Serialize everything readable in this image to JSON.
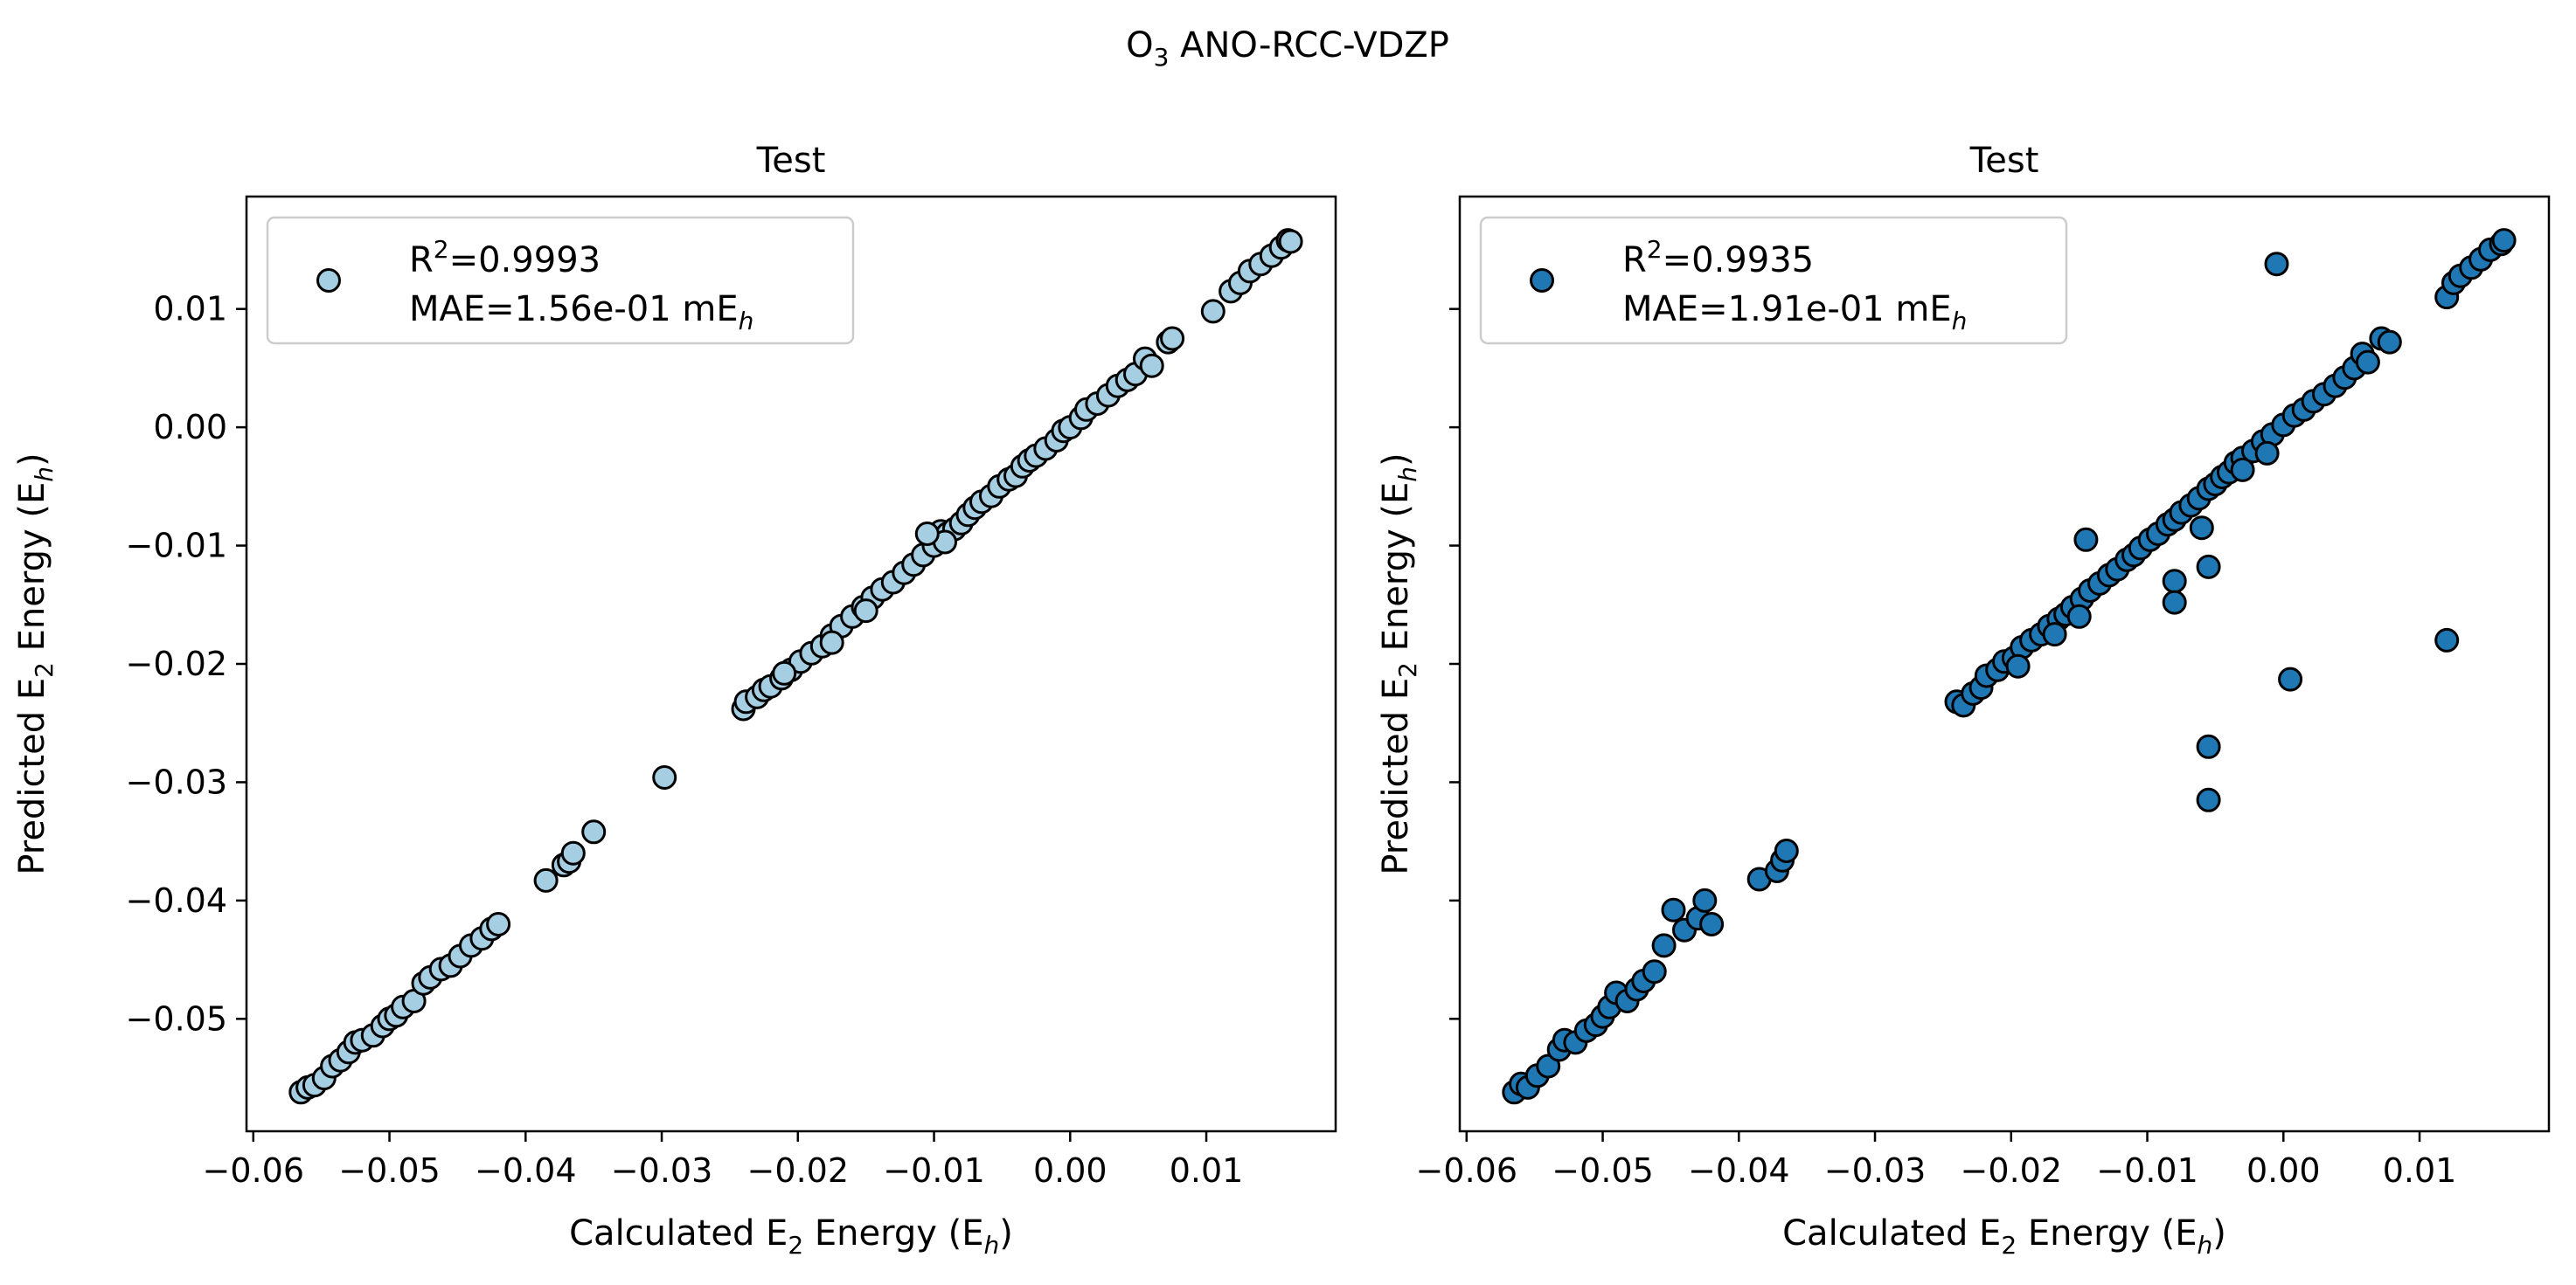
{
  "figure": {
    "suptitle": {
      "main": "O",
      "sub": "3",
      "rest": " ANO-RCC-VDZP"
    }
  },
  "colors": {
    "left_marker": "#a6cee3",
    "right_marker": "#1f78b4",
    "marker_edge": "#000000"
  },
  "chart_data": [
    {
      "type": "scatter",
      "title": "Test",
      "xlabel": {
        "pre": "Calculated E",
        "sub": "2",
        "mid": " Energy (E",
        "italic": "h",
        "post": ")"
      },
      "ylabel": {
        "pre": "Predicted E",
        "sub": "2",
        "mid": " Energy (E",
        "italic": "h",
        "post": ")"
      },
      "xlim": [
        -0.0605,
        0.0195
      ],
      "ylim": [
        -0.0595,
        0.0195
      ],
      "xticks": [
        -0.06,
        -0.05,
        -0.04,
        -0.03,
        -0.02,
        -0.01,
        0.0,
        0.01
      ],
      "xtick_labels": [
        "−0.06",
        "−0.05",
        "−0.04",
        "−0.03",
        "−0.02",
        "−0.01",
        "0.00",
        "0.01"
      ],
      "yticks": [
        -0.05,
        -0.04,
        -0.03,
        -0.02,
        -0.01,
        0.0,
        0.01
      ],
      "ytick_labels": [
        "−0.05",
        "−0.04",
        "−0.03",
        "−0.02",
        "−0.01",
        "0.00",
        "0.01"
      ],
      "show_ytick_labels": true,
      "grid": false,
      "legend": {
        "placement": "upper-left",
        "r2_label": "R",
        "r2_sup": "2",
        "r2_value": "=0.9993",
        "mae_label": "MAE=1.56e-01 mE",
        "mae_sub": "h"
      },
      "series": [
        {
          "color_key": "left_marker",
          "points": [
            [
              -0.0565,
              -0.0562
            ],
            [
              -0.056,
              -0.0558
            ],
            [
              -0.0555,
              -0.0556
            ],
            [
              -0.0548,
              -0.055
            ],
            [
              -0.0542,
              -0.054
            ],
            [
              -0.0536,
              -0.0535
            ],
            [
              -0.053,
              -0.0528
            ],
            [
              -0.0525,
              -0.052
            ],
            [
              -0.052,
              -0.0518
            ],
            [
              -0.0512,
              -0.0514
            ],
            [
              -0.0505,
              -0.0506
            ],
            [
              -0.05,
              -0.05
            ],
            [
              -0.0495,
              -0.0497
            ],
            [
              -0.049,
              -0.049
            ],
            [
              -0.0482,
              -0.0485
            ],
            [
              -0.0475,
              -0.047
            ],
            [
              -0.047,
              -0.0465
            ],
            [
              -0.0462,
              -0.0458
            ],
            [
              -0.0455,
              -0.0455
            ],
            [
              -0.0448,
              -0.0447
            ],
            [
              -0.044,
              -0.0438
            ],
            [
              -0.0432,
              -0.0432
            ],
            [
              -0.0425,
              -0.0424
            ],
            [
              -0.042,
              -0.042
            ],
            [
              -0.0385,
              -0.0383
            ],
            [
              -0.0372,
              -0.037
            ],
            [
              -0.0368,
              -0.0367
            ],
            [
              -0.0365,
              -0.036
            ],
            [
              -0.035,
              -0.0342
            ],
            [
              -0.0298,
              -0.0296
            ],
            [
              -0.024,
              -0.0238
            ],
            [
              -0.0238,
              -0.0232
            ],
            [
              -0.023,
              -0.0228
            ],
            [
              -0.0225,
              -0.0222
            ],
            [
              -0.022,
              -0.0219
            ],
            [
              -0.0212,
              -0.0212
            ],
            [
              -0.0205,
              -0.0205
            ],
            [
              -0.0198,
              -0.0198
            ],
            [
              -0.019,
              -0.0191
            ],
            [
              -0.0182,
              -0.0185
            ],
            [
              -0.0175,
              -0.0176
            ],
            [
              -0.0168,
              -0.0168
            ],
            [
              -0.016,
              -0.016
            ],
            [
              -0.0152,
              -0.0152
            ],
            [
              -0.0145,
              -0.0144
            ],
            [
              -0.0138,
              -0.0137
            ],
            [
              -0.013,
              -0.0131
            ],
            [
              -0.0122,
              -0.0123
            ],
            [
              -0.0115,
              -0.0116
            ],
            [
              -0.0108,
              -0.0108
            ],
            [
              -0.01,
              -0.01
            ],
            [
              -0.0095,
              -0.0088
            ],
            [
              -0.009,
              -0.009
            ],
            [
              -0.0085,
              -0.0086
            ],
            [
              -0.008,
              -0.0081
            ],
            [
              -0.0075,
              -0.0074
            ],
            [
              -0.007,
              -0.0068
            ],
            [
              -0.0065,
              -0.0063
            ],
            [
              -0.0058,
              -0.0058
            ],
            [
              -0.0052,
              -0.005
            ],
            [
              -0.0045,
              -0.0044
            ],
            [
              -0.004,
              -0.0041
            ],
            [
              -0.0035,
              -0.0033
            ],
            [
              -0.003,
              -0.0028
            ],
            [
              -0.0025,
              -0.0024
            ],
            [
              -0.0018,
              -0.0018
            ],
            [
              -0.001,
              -0.0011
            ],
            [
              -0.0005,
              -0.0003
            ],
            [
              0.0,
              0.0
            ],
            [
              0.0008,
              0.0008
            ],
            [
              0.0012,
              0.0015
            ],
            [
              0.002,
              0.002
            ],
            [
              0.0028,
              0.0027
            ],
            [
              0.0035,
              0.0035
            ],
            [
              0.0042,
              0.004
            ],
            [
              0.0048,
              0.0045
            ],
            [
              0.0055,
              0.0058
            ],
            [
              0.006,
              0.0052
            ],
            [
              0.0072,
              0.0072
            ],
            [
              0.0075,
              0.0075
            ],
            [
              0.0105,
              0.0098
            ],
            [
              0.0118,
              0.0115
            ],
            [
              0.0125,
              0.0122
            ],
            [
              0.0132,
              0.0132
            ],
            [
              0.014,
              0.0138
            ],
            [
              0.0148,
              0.0145
            ],
            [
              0.0155,
              0.0152
            ],
            [
              0.016,
              0.0158
            ],
            [
              0.0162,
              0.0157
            ],
            [
              -0.0092,
              -0.0097
            ],
            [
              -0.0105,
              -0.009
            ],
            [
              -0.0175,
              -0.0182
            ],
            [
              -0.015,
              -0.0155
            ],
            [
              -0.021,
              -0.0208
            ]
          ]
        }
      ]
    },
    {
      "type": "scatter",
      "title": "Test",
      "xlabel": {
        "pre": "Calculated E",
        "sub": "2",
        "mid": " Energy (E",
        "italic": "h",
        "post": ")"
      },
      "ylabel": {
        "pre": "Predicted E",
        "sub": "2",
        "mid": " Energy (E",
        "italic": "h",
        "post": ")"
      },
      "xlim": [
        -0.0605,
        0.0195
      ],
      "ylim": [
        -0.0595,
        0.0195
      ],
      "xticks": [
        -0.06,
        -0.05,
        -0.04,
        -0.03,
        -0.02,
        -0.01,
        0.0,
        0.01
      ],
      "xtick_labels": [
        "−0.06",
        "−0.05",
        "−0.04",
        "−0.03",
        "−0.02",
        "−0.01",
        "0.00",
        "0.01"
      ],
      "yticks": [
        -0.05,
        -0.04,
        -0.03,
        -0.02,
        -0.01,
        0.0,
        0.01
      ],
      "ytick_labels": [],
      "show_ytick_labels": false,
      "grid": false,
      "legend": {
        "placement": "upper-left",
        "r2_label": "R",
        "r2_sup": "2",
        "r2_value": "=0.9935",
        "mae_label": "MAE=1.91e-01 mE",
        "mae_sub": "h"
      },
      "series": [
        {
          "color_key": "right_marker",
          "points": [
            [
              -0.0565,
              -0.0562
            ],
            [
              -0.056,
              -0.0555
            ],
            [
              -0.0555,
              -0.0558
            ],
            [
              -0.0548,
              -0.0548
            ],
            [
              -0.054,
              -0.054
            ],
            [
              -0.0532,
              -0.0526
            ],
            [
              -0.0528,
              -0.0518
            ],
            [
              -0.052,
              -0.052
            ],
            [
              -0.0512,
              -0.051
            ],
            [
              -0.0505,
              -0.0505
            ],
            [
              -0.05,
              -0.0498
            ],
            [
              -0.0495,
              -0.049
            ],
            [
              -0.049,
              -0.0478
            ],
            [
              -0.0482,
              -0.0485
            ],
            [
              -0.0475,
              -0.0475
            ],
            [
              -0.047,
              -0.0468
            ],
            [
              -0.0462,
              -0.046
            ],
            [
              -0.0455,
              -0.0438
            ],
            [
              -0.0448,
              -0.0408
            ],
            [
              -0.044,
              -0.0425
            ],
            [
              -0.043,
              -0.0415
            ],
            [
              -0.0425,
              -0.04
            ],
            [
              -0.042,
              -0.042
            ],
            [
              -0.0385,
              -0.0382
            ],
            [
              -0.0372,
              -0.0375
            ],
            [
              -0.0368,
              -0.0366
            ],
            [
              -0.0365,
              -0.0358
            ],
            [
              -0.024,
              -0.0232
            ],
            [
              -0.0235,
              -0.0235
            ],
            [
              -0.0228,
              -0.0225
            ],
            [
              -0.0222,
              -0.022
            ],
            [
              -0.0218,
              -0.021
            ],
            [
              -0.021,
              -0.0205
            ],
            [
              -0.0205,
              -0.0198
            ],
            [
              -0.0198,
              -0.0195
            ],
            [
              -0.0192,
              -0.0186
            ],
            [
              -0.0185,
              -0.018
            ],
            [
              -0.0178,
              -0.0175
            ],
            [
              -0.0172,
              -0.0168
            ],
            [
              -0.0165,
              -0.0162
            ],
            [
              -0.016,
              -0.0158
            ],
            [
              -0.0155,
              -0.0152
            ],
            [
              -0.0148,
              -0.0145
            ],
            [
              -0.0142,
              -0.0138
            ],
            [
              -0.0135,
              -0.0132
            ],
            [
              -0.0128,
              -0.0125
            ],
            [
              -0.0122,
              -0.012
            ],
            [
              -0.0115,
              -0.0112
            ],
            [
              -0.011,
              -0.0108
            ],
            [
              -0.0105,
              -0.0102
            ],
            [
              -0.0098,
              -0.0095
            ],
            [
              -0.0092,
              -0.009
            ],
            [
              -0.0085,
              -0.0082
            ],
            [
              -0.008,
              -0.0078
            ],
            [
              -0.0075,
              -0.0072
            ],
            [
              -0.0068,
              -0.0066
            ],
            [
              -0.0062,
              -0.006
            ],
            [
              -0.0055,
              -0.0052
            ],
            [
              -0.005,
              -0.0048
            ],
            [
              -0.0045,
              -0.0042
            ],
            [
              -0.004,
              -0.0038
            ],
            [
              -0.0035,
              -0.003
            ],
            [
              -0.003,
              -0.0026
            ],
            [
              -0.0022,
              -0.002
            ],
            [
              -0.0015,
              -0.0012
            ],
            [
              -0.0008,
              -0.0006
            ],
            [
              0.0,
              0.0002
            ],
            [
              0.0008,
              0.001
            ],
            [
              0.0015,
              0.0015
            ],
            [
              0.0022,
              0.0022
            ],
            [
              0.003,
              0.0028
            ],
            [
              0.0038,
              0.0035
            ],
            [
              0.0045,
              0.0042
            ],
            [
              0.0052,
              0.005
            ],
            [
              0.0058,
              0.0062
            ],
            [
              0.0062,
              0.0055
            ],
            [
              0.0072,
              0.0075
            ],
            [
              0.0078,
              0.0072
            ],
            [
              0.012,
              0.011
            ],
            [
              0.0125,
              0.0122
            ],
            [
              0.013,
              0.0128
            ],
            [
              0.0138,
              0.0135
            ],
            [
              0.0145,
              0.0142
            ],
            [
              0.0152,
              0.015
            ],
            [
              0.016,
              0.0155
            ],
            [
              0.0162,
              0.0158
            ],
            [
              -0.0005,
              0.0138
            ],
            [
              0.012,
              -0.018
            ],
            [
              0.0005,
              -0.0213
            ],
            [
              -0.0055,
              -0.027
            ],
            [
              -0.0055,
              -0.0315
            ],
            [
              -0.008,
              -0.013
            ],
            [
              -0.008,
              -0.0148
            ],
            [
              -0.006,
              -0.0085
            ],
            [
              -0.0195,
              -0.0202
            ],
            [
              -0.0168,
              -0.0175
            ],
            [
              -0.0145,
              -0.0095
            ],
            [
              -0.015,
              -0.016
            ],
            [
              -0.0055,
              -0.0118
            ],
            [
              -0.003,
              -0.0036
            ],
            [
              -0.0012,
              -0.0022
            ]
          ]
        }
      ]
    }
  ]
}
